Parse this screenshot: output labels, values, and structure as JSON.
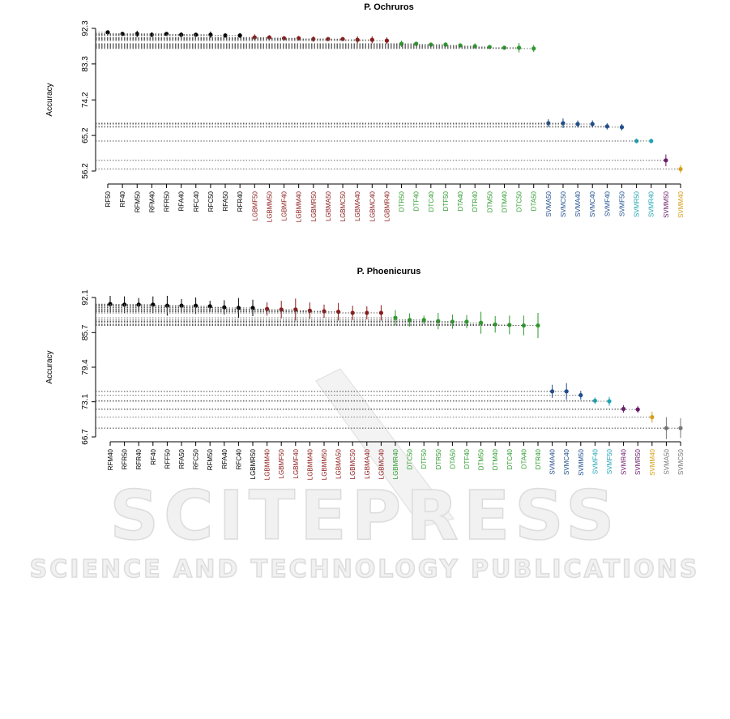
{
  "chart_data": [
    {
      "type": "dot",
      "title": "P. Ochruros",
      "ylabel": "Accuracy",
      "categories": [
        "RF50",
        "RF40",
        "RFM50",
        "RFM40",
        "RFR50",
        "RFA40",
        "RFC40",
        "RFC50",
        "RFA50",
        "RFR40",
        "LGBMF50",
        "LGBMM50",
        "LGBMF40",
        "LGBMM40",
        "LGBMR50",
        "LGBMA50",
        "LGBMC50",
        "LGBMA40",
        "LGBMC40",
        "LGBMR40",
        "DTR50",
        "DTF40",
        "DTC40",
        "DTF50",
        "DTA40",
        "DTR40",
        "DTM50",
        "DTM40",
        "DTC50",
        "DTA50",
        "SVMA50",
        "SVMC50",
        "SVMA40",
        "SVMC40",
        "SVMF40",
        "SVMF50",
        "SVMR50",
        "SVMR40",
        "SVMM50",
        "SVMM40"
      ],
      "values": [
        91.3,
        90.9,
        90.9,
        90.7,
        90.9,
        90.7,
        90.7,
        90.7,
        90.5,
        90.5,
        90.0,
        90.0,
        89.8,
        89.8,
        89.6,
        89.6,
        89.6,
        89.4,
        89.4,
        89.2,
        88.4,
        88.4,
        88.2,
        88.2,
        88.0,
        87.8,
        87.6,
        87.4,
        87.4,
        87.2,
        68.3,
        68.3,
        68.1,
        68.1,
        67.5,
        67.3,
        63.8,
        63.8,
        58.9,
        56.7
      ],
      "errors": [
        0.5,
        0.5,
        0.8,
        0.6,
        0.4,
        0.6,
        0.5,
        0.8,
        0.5,
        0.6,
        0.8,
        0.6,
        0.5,
        0.6,
        0.7,
        0.4,
        0.5,
        0.9,
        0.9,
        0.8,
        0.8,
        0.5,
        0.5,
        0.6,
        0.5,
        0.7,
        0.5,
        0.5,
        1.2,
        0.9,
        1.0,
        1.2,
        0.9,
        0.9,
        0.8,
        0.8,
        0.6,
        0.6,
        1.5,
        1.0
      ],
      "point_colors": [
        "#000000",
        "#000000",
        "#000000",
        "#000000",
        "#000000",
        "#000000",
        "#000000",
        "#000000",
        "#000000",
        "#000000",
        "#8b1a1a",
        "#8b1a1a",
        "#8b1a1a",
        "#8b1a1a",
        "#8b1a1a",
        "#8b1a1a",
        "#8b1a1a",
        "#8b1a1a",
        "#8b1a1a",
        "#8b1a1a",
        "#2e9a2e",
        "#2e9a2e",
        "#2e9a2e",
        "#2e9a2e",
        "#2e9a2e",
        "#2e9a2e",
        "#2e9a2e",
        "#2e9a2e",
        "#2e9a2e",
        "#2e9a2e",
        "#1f4e8c",
        "#1f4e8c",
        "#1f4e8c",
        "#1f4e8c",
        "#1f4e8c",
        "#1f4e8c",
        "#20a4b4",
        "#20a4b4",
        "#6a1b6a",
        "#d4a017"
      ],
      "ylim": [
        56.2,
        92.3
      ],
      "yticks": [
        92.3,
        83.3,
        74.2,
        65.2,
        56.2
      ]
    },
    {
      "type": "dot",
      "title": "P. Phoenicurus",
      "ylabel": "Accuracy",
      "categories": [
        "RFM40",
        "RFR50",
        "RFR40",
        "RF40",
        "RFF50",
        "RFA50",
        "RFC50",
        "RFM50",
        "RFA40",
        "RFC40",
        "LGBMR50",
        "LGBMM40",
        "LGBMF50",
        "LGBMF40",
        "LGBMM40",
        "LGBMM50",
        "LGBMA50",
        "LGBMC50",
        "LGBMA40",
        "LGBMC40",
        "LGBMR40",
        "DTC50",
        "DTF50",
        "DTR50",
        "DTA50",
        "DTF40",
        "DTM50",
        "DTM40",
        "DTC40",
        "DTA40",
        "DTR40",
        "SVMA40",
        "SVMC40",
        "SVMM50",
        "SVMF40",
        "SVMF50",
        "SVMR40",
        "SVMR50",
        "SVMM40",
        "SVMA50",
        "SVMC50"
      ],
      "values": [
        90.9,
        90.8,
        90.8,
        90.8,
        90.6,
        90.6,
        90.6,
        90.5,
        90.3,
        90.2,
        90.2,
        90.0,
        89.9,
        89.9,
        89.7,
        89.6,
        89.5,
        89.3,
        89.3,
        89.3,
        88.4,
        88.0,
        88.0,
        87.8,
        87.7,
        87.7,
        87.5,
        87.2,
        87.1,
        87.0,
        87.0,
        75.0,
        75.0,
        74.3,
        73.3,
        73.2,
        71.8,
        71.7,
        70.3,
        68.3,
        68.3
      ],
      "errors": [
        1.5,
        1.5,
        1.2,
        1.5,
        1.8,
        1.2,
        1.5,
        1.0,
        1.3,
        1.8,
        1.5,
        1.2,
        1.6,
        2.0,
        1.5,
        1.2,
        1.6,
        1.3,
        1.2,
        1.4,
        1.4,
        1.2,
        0.8,
        1.5,
        1.3,
        1.2,
        2.0,
        1.5,
        1.7,
        1.8,
        2.3,
        1.2,
        1.5,
        0.8,
        0.6,
        0.8,
        0.7,
        0.6,
        1.0,
        2.0,
        1.8
      ],
      "point_colors": [
        "#000000",
        "#000000",
        "#000000",
        "#000000",
        "#000000",
        "#000000",
        "#000000",
        "#000000",
        "#000000",
        "#000000",
        "#000000",
        "#8b1a1a",
        "#8b1a1a",
        "#8b1a1a",
        "#8b1a1a",
        "#8b1a1a",
        "#8b1a1a",
        "#8b1a1a",
        "#8b1a1a",
        "#8b1a1a",
        "#2e9a2e",
        "#2e9a2e",
        "#2e9a2e",
        "#2e9a2e",
        "#2e9a2e",
        "#2e9a2e",
        "#2e9a2e",
        "#2e9a2e",
        "#2e9a2e",
        "#2e9a2e",
        "#2e9a2e",
        "#1f4e8c",
        "#1f4e8c",
        "#1f4e8c",
        "#20a4b4",
        "#20a4b4",
        "#6a1b6a",
        "#6a1b6a",
        "#d4a017",
        "#777777",
        "#777777"
      ],
      "ylim": [
        66.7,
        92.1
      ],
      "yticks": [
        92.1,
        85.7,
        79.4,
        73.1,
        66.7
      ]
    }
  ],
  "watermark": {
    "title": "SCITEPRESS",
    "subtitle": "SCIENCE AND TECHNOLOGY PUBLICATIONS"
  }
}
